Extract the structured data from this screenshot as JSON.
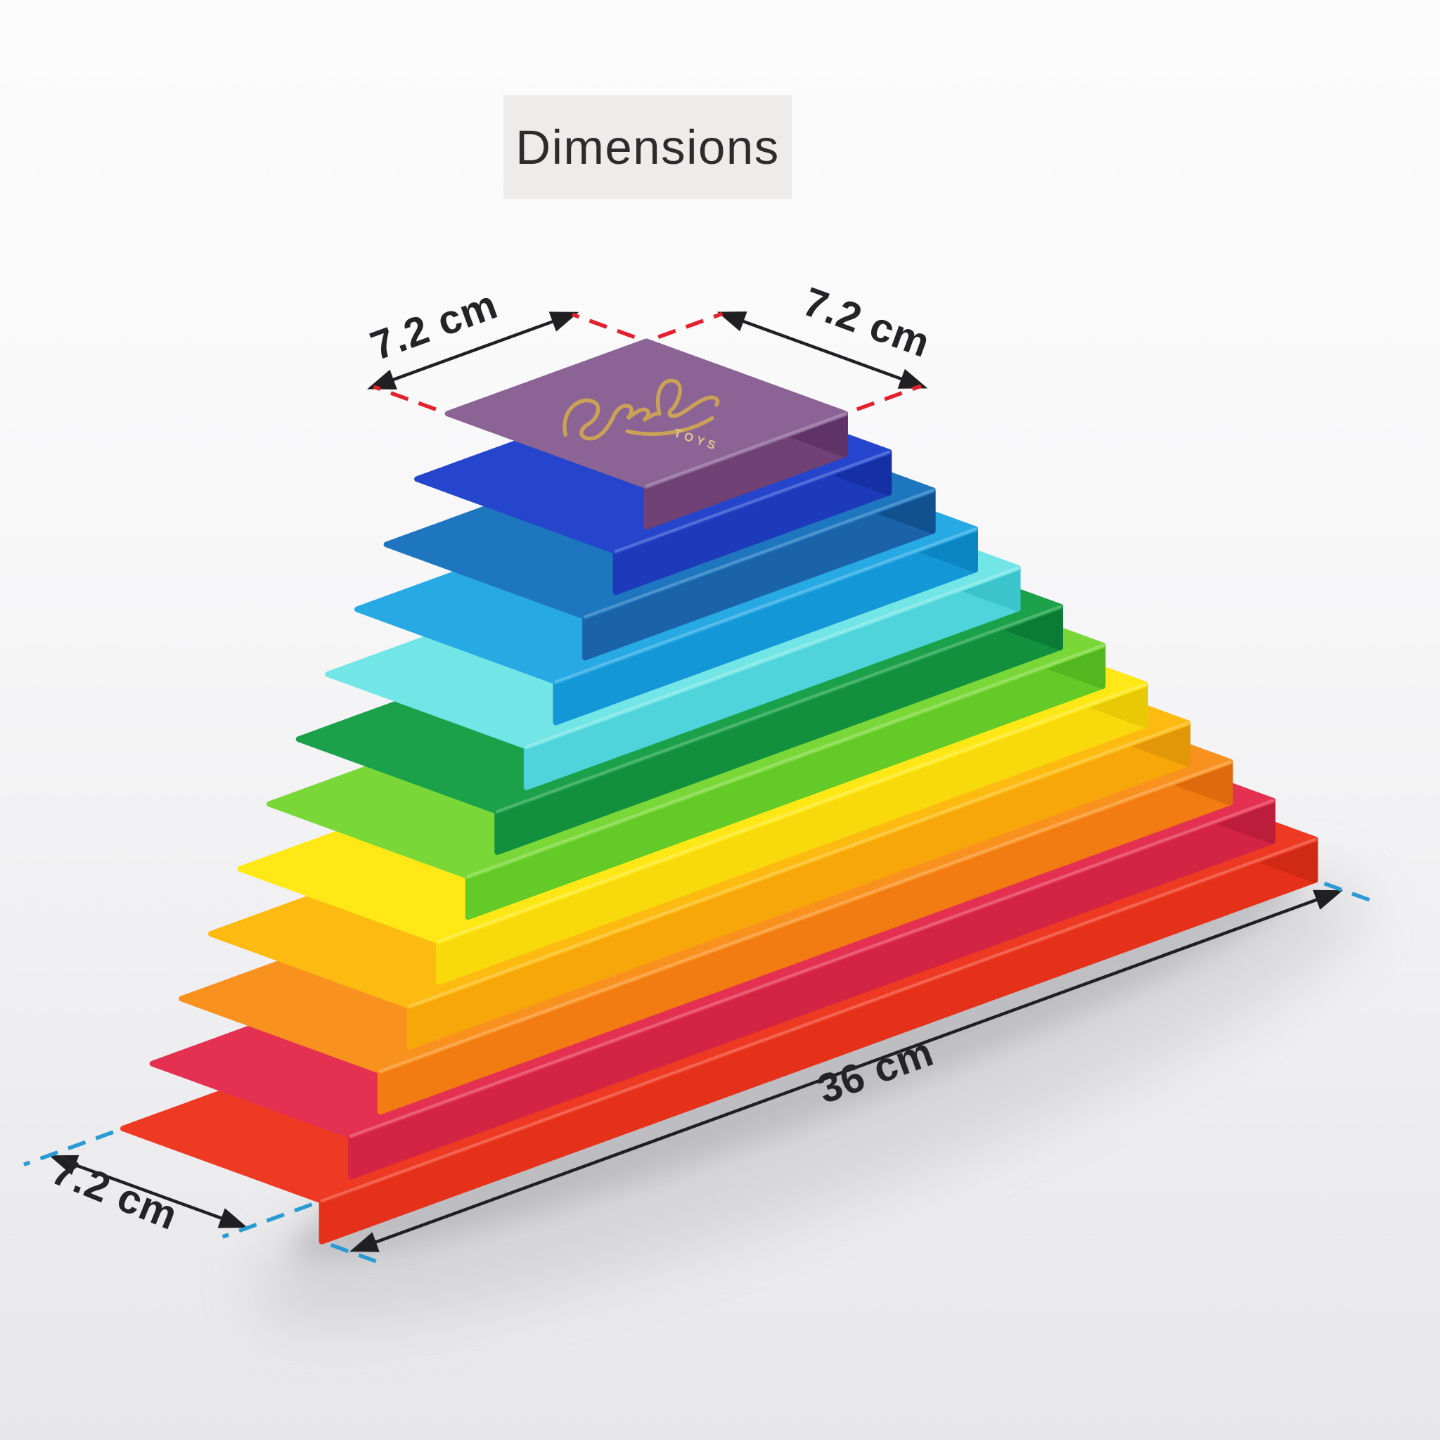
{
  "title": {
    "text": "Dimensions"
  },
  "product": {
    "name": "rainbow-stacking-planks-pyramid",
    "layer_count": 12,
    "brand_logo": {
      "subtext": "TOYS"
    }
  },
  "dimensions": {
    "top_left_label": "7.2 cm",
    "top_right_label": "7.2 cm",
    "bottom_length_label": "36 cm",
    "bottom_left_label": "7.2 cm"
  },
  "annotation_colors": {
    "arrow_line": "#202022",
    "witness_top_dashes": "#e5202d",
    "witness_bottom_dashes": "#2a9ad4",
    "label_text": "#242427",
    "title_box_bg": "#eeebeb"
  },
  "layers": [
    {
      "name": "red",
      "length_cm": 36.0,
      "top": "#ee3a22",
      "front": "#e53119",
      "side": "#d12a14"
    },
    {
      "name": "crimson",
      "length_cm": 33.4,
      "top": "#e43152",
      "front": "#d42443",
      "side": "#bb1d3a"
    },
    {
      "name": "orange",
      "length_cm": 30.8,
      "top": "#f9911f",
      "front": "#f27b12",
      "side": "#dd6a0c"
    },
    {
      "name": "amber",
      "length_cm": 28.2,
      "top": "#fdbb12",
      "front": "#f7a70a",
      "side": "#e29708"
    },
    {
      "name": "yellow",
      "length_cm": 25.6,
      "top": "#ffe816",
      "front": "#f8da0c",
      "side": "#e8c906"
    },
    {
      "name": "lime",
      "length_cm": 23.0,
      "top": "#79d838",
      "front": "#64ca27",
      "side": "#53b81f"
    },
    {
      "name": "green",
      "length_cm": 20.4,
      "top": "#1ba14a",
      "front": "#12903e",
      "side": "#0c7b36"
    },
    {
      "name": "aqua",
      "length_cm": 17.8,
      "top": "#72e5e6",
      "front": "#4ed4da",
      "side": "#3bc4cc"
    },
    {
      "name": "sky",
      "length_cm": 15.2,
      "top": "#27a9e4",
      "front": "#1497d6",
      "side": "#0c86c3"
    },
    {
      "name": "ocean",
      "length_cm": 12.6,
      "top": "#1d76be",
      "front": "#1b63a9",
      "side": "#125190"
    },
    {
      "name": "royal",
      "length_cm": 9.9,
      "top": "#2546cc",
      "front": "#1d3abb",
      "side": "#1530a4"
    },
    {
      "name": "purple",
      "length_cm": 7.2,
      "top": "#8b6394",
      "front": "#6f4175",
      "side": "#5f3367"
    }
  ],
  "depth_cm": 7.2
}
